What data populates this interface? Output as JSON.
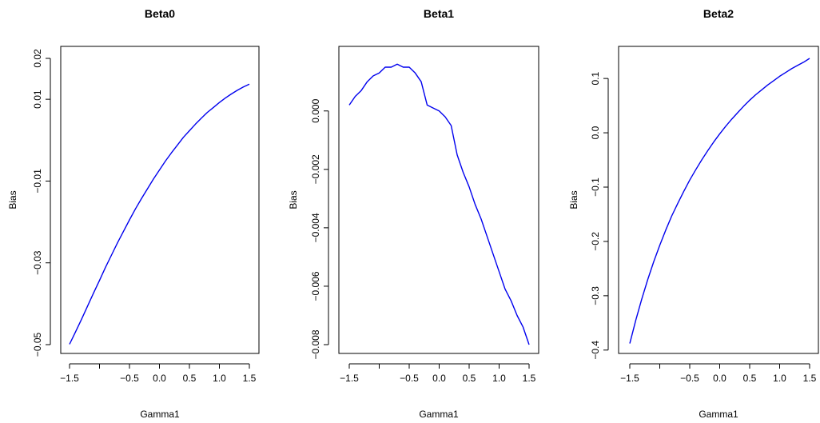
{
  "colors": {
    "series": "#0000ee",
    "axis": "#000000",
    "background": "#ffffff"
  },
  "chart_data": [
    {
      "type": "line",
      "title": "Beta0",
      "xlabel": "Gamma1",
      "ylabel": "Bias",
      "xlim": [
        -1.5,
        1.5
      ],
      "ylim": [
        -0.05,
        0.02
      ],
      "x_ticks": [
        -1.5,
        -1.0,
        -0.5,
        0.0,
        0.5,
        1.0,
        1.5
      ],
      "x_tick_labels": [
        "-1.5",
        "",
        "-0.5",
        "0.0",
        "0.5",
        "1.0",
        "1.5"
      ],
      "y_ticks": [
        -0.05,
        -0.03,
        -0.01,
        0.01,
        0.02
      ],
      "y_tick_labels": [
        "-0.05",
        "-0.03",
        "-0.01",
        "0.01",
        "0.02"
      ],
      "grid": false,
      "series": [
        {
          "color": "#0000ee",
          "x": [
            -1.5,
            -1.4,
            -1.3,
            -1.2,
            -1.1,
            -1.0,
            -0.9,
            -0.8,
            -0.7,
            -0.6,
            -0.5,
            -0.4,
            -0.3,
            -0.2,
            -0.1,
            0.0,
            0.1,
            0.2,
            0.3,
            0.4,
            0.5,
            0.6,
            0.7,
            0.8,
            0.9,
            1.0,
            1.1,
            1.2,
            1.3,
            1.4,
            1.5
          ],
          "y": [
            -0.0499,
            -0.0469,
            -0.0438,
            -0.0406,
            -0.0374,
            -0.0343,
            -0.0311,
            -0.0281,
            -0.0251,
            -0.0223,
            -0.0195,
            -0.0168,
            -0.0143,
            -0.0119,
            -0.0095,
            -0.0073,
            -0.0051,
            -0.0031,
            -0.0012,
            0.0007,
            0.0023,
            0.0039,
            0.0054,
            0.0068,
            0.008,
            0.0092,
            0.0103,
            0.0113,
            0.0122,
            0.013,
            0.0137
          ]
        }
      ]
    },
    {
      "type": "line",
      "title": "Beta1",
      "xlabel": "Gamma1",
      "ylabel": "Bias",
      "xlim": [
        -1.5,
        1.5
      ],
      "ylim": [
        -0.008,
        0.0018
      ],
      "x_ticks": [
        -1.5,
        -1.0,
        -0.5,
        0.0,
        0.5,
        1.0,
        1.5
      ],
      "x_tick_labels": [
        "-1.5",
        "",
        "-0.5",
        "0.0",
        "0.5",
        "1.0",
        "1.5"
      ],
      "y_ticks": [
        -0.008,
        -0.006,
        -0.004,
        -0.002,
        0.0
      ],
      "y_tick_labels": [
        "-0.008",
        "-0.006",
        "-0.004",
        "-0.002",
        "0.000"
      ],
      "grid": false,
      "series": [
        {
          "color": "#0000ee",
          "x": [
            -1.5,
            -1.4,
            -1.3,
            -1.2,
            -1.1,
            -1.0,
            -0.9,
            -0.8,
            -0.7,
            -0.6,
            -0.5,
            -0.4,
            -0.3,
            -0.2,
            -0.1,
            0.0,
            0.1,
            0.2,
            0.3,
            0.4,
            0.5,
            0.6,
            0.7,
            0.8,
            0.9,
            1.0,
            1.1,
            1.2,
            1.3,
            1.4,
            1.5
          ],
          "y": [
            0.0002,
            0.0005,
            0.0007,
            0.001,
            0.0012,
            0.0013,
            0.0015,
            0.0015,
            0.0016,
            0.0015,
            0.0015,
            0.0013,
            0.001,
            0.0002,
            0.0001,
            0.0,
            -0.0002,
            -0.0005,
            -0.0015,
            -0.0021,
            -0.0026,
            -0.0032,
            -0.0037,
            -0.0043,
            -0.0049,
            -0.0055,
            -0.0061,
            -0.0065,
            -0.007,
            -0.0074,
            -0.008
          ]
        }
      ]
    },
    {
      "type": "line",
      "title": "Beta2",
      "xlabel": "Gamma1",
      "ylabel": "Bias",
      "xlim": [
        -1.5,
        1.5
      ],
      "ylim": [
        -0.39,
        0.137
      ],
      "x_ticks": [
        -1.5,
        -1.0,
        -0.5,
        0.0,
        0.5,
        1.0,
        1.5
      ],
      "x_tick_labels": [
        "-1.5",
        "",
        "-0.5",
        "0.0",
        "0.5",
        "1.0",
        "1.5"
      ],
      "y_ticks": [
        -0.4,
        -0.3,
        -0.2,
        -0.1,
        0.0,
        0.1
      ],
      "y_tick_labels": [
        "-0.4",
        "-0.3",
        "-0.2",
        "-0.1",
        "0.0",
        "0.1"
      ],
      "grid": false,
      "series": [
        {
          "color": "#0000ee",
          "x": [
            -1.5,
            -1.4,
            -1.3,
            -1.2,
            -1.1,
            -1.0,
            -0.9,
            -0.8,
            -0.7,
            -0.6,
            -0.5,
            -0.4,
            -0.3,
            -0.2,
            -0.1,
            0.0,
            0.1,
            0.2,
            0.3,
            0.4,
            0.5,
            0.6,
            0.7,
            0.8,
            0.9,
            1.0,
            1.1,
            1.2,
            1.3,
            1.4,
            1.5
          ],
          "y": [
            -0.388,
            -0.345,
            -0.306,
            -0.27,
            -0.237,
            -0.207,
            -0.179,
            -0.153,
            -0.13,
            -0.108,
            -0.087,
            -0.068,
            -0.05,
            -0.033,
            -0.017,
            -0.002,
            0.012,
            0.025,
            0.037,
            0.049,
            0.06,
            0.07,
            0.079,
            0.088,
            0.096,
            0.104,
            0.111,
            0.118,
            0.124,
            0.13,
            0.137
          ]
        }
      ]
    }
  ]
}
